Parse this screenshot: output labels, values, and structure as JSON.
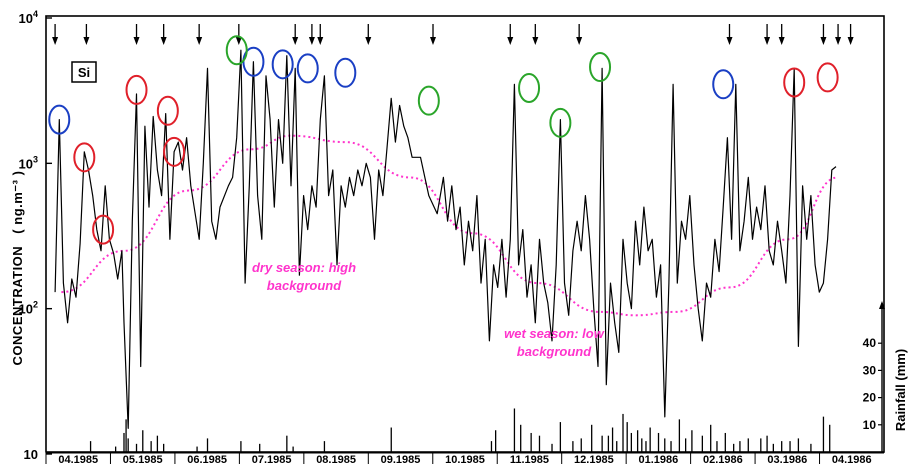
{
  "chart_data": {
    "type": "line",
    "title": "",
    "element_label": "Si",
    "ylabel": "CONCENTRATION",
    "ylabel_unit": "( ng.m⁻³ )",
    "yscale": "log",
    "ylim": [
      10,
      10000
    ],
    "y_ticks": [
      {
        "value": 10,
        "base": "10",
        "exp": ""
      },
      {
        "value": 100,
        "base": "10",
        "exp": "2"
      },
      {
        "value": 1000,
        "base": "10",
        "exp": "3"
      },
      {
        "value": 10000,
        "base": "10",
        "exp": "4"
      }
    ],
    "secondary_ylabel": "Rainfall (mm)",
    "secondary_ylim": [
      0,
      50
    ],
    "secondary_ticks": [
      "10",
      "20",
      "30",
      "40"
    ],
    "x_start": "1985-03-28",
    "x_end": "1986-04-30",
    "months": [
      "04.1985",
      "05.1985",
      "06.1985",
      "07.1985",
      "08.1985",
      "09.1985",
      "10.1985",
      "11.1985",
      "12.1985",
      "01.1986",
      "02.1986",
      "03.1986",
      "04.1986"
    ],
    "series_concentration": [
      [
        "1985-03-29",
        130
      ],
      [
        "1985-03-31",
        2000
      ],
      [
        "1985-04-02",
        150
      ],
      [
        "1985-04-04",
        80
      ],
      [
        "1985-04-06",
        160
      ],
      [
        "1985-04-08",
        120
      ],
      [
        "1985-04-10",
        280
      ],
      [
        "1985-04-12",
        1200
      ],
      [
        "1985-04-14",
        900
      ],
      [
        "1985-04-16",
        600
      ],
      [
        "1985-04-18",
        350
      ],
      [
        "1985-04-20",
        250
      ],
      [
        "1985-04-22",
        700
      ],
      [
        "1985-04-24",
        300
      ],
      [
        "1985-04-26",
        240
      ],
      [
        "1985-04-28",
        160
      ],
      [
        "1985-04-30",
        250
      ],
      [
        "1985-05-01",
        80
      ],
      [
        "1985-05-03",
        15
      ],
      [
        "1985-05-05",
        400
      ],
      [
        "1985-05-07",
        3000
      ],
      [
        "1985-05-09",
        40
      ],
      [
        "1985-05-11",
        1800
      ],
      [
        "1985-05-13",
        500
      ],
      [
        "1985-05-15",
        2100
      ],
      [
        "1985-05-17",
        900
      ],
      [
        "1985-05-19",
        600
      ],
      [
        "1985-05-21",
        2200
      ],
      [
        "1985-05-23",
        300
      ],
      [
        "1985-05-25",
        1200
      ],
      [
        "1985-05-27",
        1400
      ],
      [
        "1985-05-29",
        900
      ],
      [
        "1985-05-31",
        1500
      ],
      [
        "1985-06-02",
        700
      ],
      [
        "1985-06-06",
        300
      ],
      [
        "1985-06-08",
        1000
      ],
      [
        "1985-06-10",
        4500
      ],
      [
        "1985-06-12",
        400
      ],
      [
        "1985-06-14",
        300
      ],
      [
        "1985-06-16",
        500
      ],
      [
        "1985-06-20",
        700
      ],
      [
        "1985-06-22",
        800
      ],
      [
        "1985-06-24",
        1500
      ],
      [
        "1985-06-26",
        6000
      ],
      [
        "1985-06-28",
        150
      ],
      [
        "1985-06-30",
        700
      ],
      [
        "1985-07-02",
        5000
      ],
      [
        "1985-07-04",
        600
      ],
      [
        "1985-07-06",
        300
      ],
      [
        "1985-07-08",
        4000
      ],
      [
        "1985-07-10",
        2000
      ],
      [
        "1985-07-12",
        500
      ],
      [
        "1985-07-14",
        2000
      ],
      [
        "1985-07-16",
        1000
      ],
      [
        "1985-07-18",
        5500
      ],
      [
        "1985-07-20",
        700
      ],
      [
        "1985-07-22",
        4500
      ],
      [
        "1985-07-24",
        170
      ],
      [
        "1985-07-26",
        600
      ],
      [
        "1985-07-28",
        350
      ],
      [
        "1985-07-30",
        700
      ],
      [
        "1985-08-01",
        500
      ],
      [
        "1985-08-03",
        2000
      ],
      [
        "1985-08-05",
        4000
      ],
      [
        "1985-08-07",
        600
      ],
      [
        "1985-08-09",
        900
      ],
      [
        "1985-08-11",
        200
      ],
      [
        "1985-08-13",
        700
      ],
      [
        "1985-08-15",
        500
      ],
      [
        "1985-08-17",
        800
      ],
      [
        "1985-08-19",
        600
      ],
      [
        "1985-08-21",
        900
      ],
      [
        "1985-08-23",
        700
      ],
      [
        "1985-08-25",
        1000
      ],
      [
        "1985-08-27",
        800
      ],
      [
        "1985-08-29",
        300
      ],
      [
        "1985-08-31",
        900
      ],
      [
        "1985-09-02",
        600
      ],
      [
        "1985-09-04",
        1300
      ],
      [
        "1985-09-06",
        2800
      ],
      [
        "1985-09-08",
        1400
      ],
      [
        "1985-09-10",
        2500
      ],
      [
        "1985-09-12",
        1800
      ],
      [
        "1985-09-14",
        1500
      ],
      [
        "1985-09-16",
        1100
      ],
      [
        "1985-09-20",
        1100
      ],
      [
        "1985-09-24",
        600
      ],
      [
        "1985-09-28",
        450
      ],
      [
        "1985-10-01",
        800
      ],
      [
        "1985-10-03",
        400
      ],
      [
        "1985-10-05",
        700
      ],
      [
        "1985-10-07",
        350
      ],
      [
        "1985-10-09",
        500
      ],
      [
        "1985-10-11",
        200
      ],
      [
        "1985-10-13",
        400
      ],
      [
        "1985-10-15",
        250
      ],
      [
        "1985-10-17",
        600
      ],
      [
        "1985-10-19",
        150
      ],
      [
        "1985-10-21",
        300
      ],
      [
        "1985-10-23",
        60
      ],
      [
        "1985-10-25",
        200
      ],
      [
        "1985-10-27",
        140
      ],
      [
        "1985-10-29",
        300
      ],
      [
        "1985-10-31",
        120
      ],
      [
        "1985-11-02",
        300
      ],
      [
        "1985-11-04",
        3500
      ],
      [
        "1985-11-06",
        200
      ],
      [
        "1985-11-08",
        350
      ],
      [
        "1985-11-10",
        120
      ],
      [
        "1985-11-12",
        200
      ],
      [
        "1985-11-14",
        80
      ],
      [
        "1985-11-16",
        300
      ],
      [
        "1985-11-18",
        150
      ],
      [
        "1985-11-20",
        110
      ],
      [
        "1985-11-22",
        60
      ],
      [
        "1985-11-24",
        200
      ],
      [
        "1985-11-26",
        2000
      ],
      [
        "1985-11-28",
        150
      ],
      [
        "1985-11-30",
        90
      ],
      [
        "1985-12-02",
        250
      ],
      [
        "1985-12-04",
        400
      ],
      [
        "1985-12-06",
        250
      ],
      [
        "1985-12-08",
        600
      ],
      [
        "1985-12-10",
        300
      ],
      [
        "1985-12-12",
        100
      ],
      [
        "1985-12-14",
        40
      ],
      [
        "1985-12-16",
        4500
      ],
      [
        "1985-12-18",
        30
      ],
      [
        "1985-12-20",
        150
      ],
      [
        "1985-12-22",
        80
      ],
      [
        "1985-12-24",
        50
      ],
      [
        "1985-12-26",
        300
      ],
      [
        "1985-12-28",
        150
      ],
      [
        "1985-12-30",
        100
      ],
      [
        "1986-01-01",
        400
      ],
      [
        "1986-01-03",
        200
      ],
      [
        "1986-01-05",
        500
      ],
      [
        "1986-01-07",
        250
      ],
      [
        "1986-01-09",
        300
      ],
      [
        "1986-01-11",
        120
      ],
      [
        "1986-01-13",
        200
      ],
      [
        "1986-01-15",
        18
      ],
      [
        "1986-01-17",
        150
      ],
      [
        "1986-01-19",
        3500
      ],
      [
        "1986-01-21",
        150
      ],
      [
        "1986-01-23",
        400
      ],
      [
        "1986-01-25",
        300
      ],
      [
        "1986-01-27",
        600
      ],
      [
        "1986-01-29",
        200
      ],
      [
        "1986-01-31",
        100
      ],
      [
        "1986-02-02",
        60
      ],
      [
        "1986-02-04",
        150
      ],
      [
        "1986-02-06",
        120
      ],
      [
        "1986-02-08",
        300
      ],
      [
        "1986-02-10",
        180
      ],
      [
        "1986-02-12",
        500
      ],
      [
        "1986-02-14",
        1500
      ],
      [
        "1986-02-16",
        300
      ],
      [
        "1986-02-18",
        3500
      ],
      [
        "1986-02-20",
        250
      ],
      [
        "1986-02-22",
        400
      ],
      [
        "1986-02-24",
        800
      ],
      [
        "1986-02-26",
        300
      ],
      [
        "1986-02-28",
        500
      ],
      [
        "1986-03-02",
        350
      ],
      [
        "1986-03-04",
        700
      ],
      [
        "1986-03-06",
        250
      ],
      [
        "1986-03-08",
        200
      ],
      [
        "1986-03-10",
        400
      ],
      [
        "1986-03-12",
        250
      ],
      [
        "1986-03-14",
        150
      ],
      [
        "1986-03-16",
        600
      ],
      [
        "1986-03-18",
        4500
      ],
      [
        "1986-03-20",
        55
      ],
      [
        "1986-03-22",
        700
      ],
      [
        "1986-03-24",
        300
      ],
      [
        "1986-03-26",
        600
      ],
      [
        "1986-03-28",
        200
      ],
      [
        "1986-03-30",
        130
      ],
      [
        "1986-04-01",
        150
      ],
      [
        "1986-04-03",
        300
      ],
      [
        "1986-04-05",
        900
      ],
      [
        "1986-04-07",
        950
      ]
    ],
    "background_curve": [
      [
        "1985-04-01",
        130
      ],
      [
        "1985-05-01",
        250
      ],
      [
        "1985-06-01",
        650
      ],
      [
        "1985-07-01",
        1250
      ],
      [
        "1985-07-20",
        1550
      ],
      [
        "1985-08-15",
        1400
      ],
      [
        "1985-09-15",
        800
      ],
      [
        "1985-10-15",
        330
      ],
      [
        "1985-11-15",
        150
      ],
      [
        "1985-12-15",
        95
      ],
      [
        "1986-01-01",
        90
      ],
      [
        "1986-01-20",
        95
      ],
      [
        "1986-02-15",
        140
      ],
      [
        "1986-03-15",
        300
      ],
      [
        "1986-04-08",
        800
      ]
    ],
    "rainfall_events": [
      [
        "1985-04-15",
        4
      ],
      [
        "1985-04-27",
        2
      ],
      [
        "1985-05-01",
        7
      ],
      [
        "1985-05-02",
        12
      ],
      [
        "1985-05-03",
        5
      ],
      [
        "1985-05-07",
        3
      ],
      [
        "1985-05-10",
        8
      ],
      [
        "1985-05-14",
        4
      ],
      [
        "1985-05-17",
        6
      ],
      [
        "1985-05-20",
        3
      ],
      [
        "1985-06-05",
        2
      ],
      [
        "1985-06-10",
        5
      ],
      [
        "1985-06-26",
        4
      ],
      [
        "1985-07-05",
        3
      ],
      [
        "1985-07-18",
        6
      ],
      [
        "1985-07-21",
        2
      ],
      [
        "1985-08-05",
        4
      ],
      [
        "1985-09-06",
        9
      ],
      [
        "1985-10-24",
        4
      ],
      [
        "1985-10-26",
        8
      ],
      [
        "1985-11-04",
        16
      ],
      [
        "1985-11-07",
        10
      ],
      [
        "1985-11-12",
        7
      ],
      [
        "1985-11-16",
        6
      ],
      [
        "1985-11-22",
        3
      ],
      [
        "1985-11-26",
        11
      ],
      [
        "1985-12-02",
        4
      ],
      [
        "1985-12-06",
        5
      ],
      [
        "1985-12-11",
        10
      ],
      [
        "1985-12-16",
        6
      ],
      [
        "1985-12-19",
        6
      ],
      [
        "1985-12-21",
        9
      ],
      [
        "1985-12-23",
        4
      ],
      [
        "1985-12-26",
        14
      ],
      [
        "1985-12-28",
        11
      ],
      [
        "1985-12-30",
        7
      ],
      [
        "1986-01-02",
        8
      ],
      [
        "1986-01-04",
        5
      ],
      [
        "1986-01-06",
        4
      ],
      [
        "1986-01-08",
        9
      ],
      [
        "1986-01-12",
        7
      ],
      [
        "1986-01-15",
        5
      ],
      [
        "1986-01-18",
        4
      ],
      [
        "1986-01-22",
        12
      ],
      [
        "1986-01-25",
        5
      ],
      [
        "1986-01-28",
        8
      ],
      [
        "1986-02-02",
        6
      ],
      [
        "1986-02-06",
        10
      ],
      [
        "1986-02-09",
        4
      ],
      [
        "1986-02-13",
        7
      ],
      [
        "1986-02-17",
        3
      ],
      [
        "1986-02-20",
        4
      ],
      [
        "1986-02-24",
        5
      ],
      [
        "1986-03-02",
        5
      ],
      [
        "1986-03-05",
        6
      ],
      [
        "1986-03-08",
        3
      ],
      [
        "1986-03-12",
        4
      ],
      [
        "1986-03-16",
        4
      ],
      [
        "1986-03-20",
        5
      ],
      [
        "1986-03-26",
        3
      ],
      [
        "1986-04-01",
        13
      ],
      [
        "1986-04-04",
        10
      ]
    ],
    "event_arrows": [
      "1985-03-29",
      "1985-04-13",
      "1985-05-07",
      "1985-05-20",
      "1985-06-06",
      "1985-06-25",
      "1985-07-22",
      "1985-07-30",
      "1985-08-03",
      "1985-08-26",
      "1985-09-26",
      "1985-11-02",
      "1985-11-14",
      "1985-12-05",
      "1986-02-15",
      "1986-03-05",
      "1986-03-12",
      "1986-04-01",
      "1986-04-08",
      "1986-04-14"
    ],
    "circles": {
      "blue": [
        "1985-03-31",
        "1985-07-02",
        "1985-07-16",
        "1985-07-28",
        "1985-08-15",
        "1986-02-12"
      ],
      "red": [
        "1985-04-12",
        "1985-04-21",
        "1985-05-07",
        "1985-05-22",
        "1985-05-25",
        "1986-03-18",
        "1986-04-03"
      ],
      "green": [
        "1985-06-24",
        "1985-09-24",
        "1985-11-11",
        "1985-11-26",
        "1985-12-15"
      ]
    },
    "circle_values": {
      "blue": [
        2000,
        5000,
        4800,
        4500,
        4200,
        3500
      ],
      "red": [
        1100,
        350,
        3200,
        2300,
        1200,
        3600,
        3900
      ],
      "green": [
        6000,
        2700,
        3300,
        1900,
        4600
      ]
    },
    "annotations": [
      {
        "text": "dry season: high",
        "line2": "background"
      },
      {
        "text": "wet season: low",
        "line2": "background"
      }
    ],
    "colors": {
      "series": "#000000",
      "background_curve": "#ff33cc",
      "circle_blue": "#1a3fc4",
      "circle_red": "#e0202a",
      "circle_green": "#2aa52a"
    }
  }
}
